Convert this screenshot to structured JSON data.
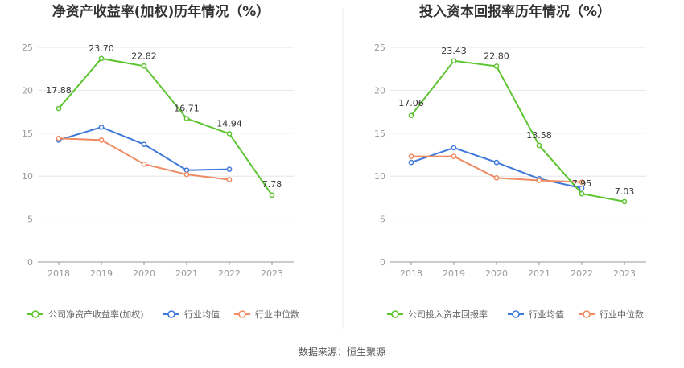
{
  "chart_data": [
    {
      "type": "line",
      "title": "净资产收益率(加权)历年情况（%）",
      "categories": [
        "2018",
        "2019",
        "2020",
        "2021",
        "2022",
        "2023"
      ],
      "ylim": [
        0,
        25
      ],
      "yticks": [
        0,
        5,
        10,
        15,
        20,
        25
      ],
      "grid": true,
      "legend_position": "bottom",
      "series": [
        {
          "name": "公司净资产收益率(加权)",
          "color": "#5cc430",
          "values": [
            17.88,
            23.7,
            22.82,
            16.71,
            14.94,
            7.78
          ],
          "labels": [
            "17.88",
            "23.70",
            "22.82",
            "16.71",
            "14.94",
            "7.78"
          ]
        },
        {
          "name": "行业均值",
          "color": "#3f79d9",
          "values": [
            14.2,
            15.7,
            13.7,
            10.7,
            10.8,
            null
          ]
        },
        {
          "name": "行业中位数",
          "color": "#ef8a62",
          "values": [
            14.4,
            14.2,
            11.4,
            10.2,
            9.6,
            null
          ]
        }
      ]
    },
    {
      "type": "line",
      "title": "投入资本回报率历年情况（%）",
      "categories": [
        "2018",
        "2019",
        "2020",
        "2021",
        "2022",
        "2023"
      ],
      "ylim": [
        0,
        25
      ],
      "yticks": [
        0,
        5,
        10,
        15,
        20,
        25
      ],
      "grid": true,
      "legend_position": "bottom",
      "series": [
        {
          "name": "公司投入资本回报率",
          "color": "#5cc430",
          "values": [
            17.06,
            23.43,
            22.8,
            13.58,
            7.95,
            7.03
          ],
          "labels": [
            "17.06",
            "23.43",
            "22.80",
            "13.58",
            "7.95",
            "7.03"
          ]
        },
        {
          "name": "行业均值",
          "color": "#3f79d9",
          "values": [
            11.6,
            13.3,
            11.6,
            9.7,
            8.6,
            null
          ]
        },
        {
          "name": "行业中位数",
          "color": "#ef8a62",
          "values": [
            12.3,
            12.3,
            9.8,
            9.5,
            9.3,
            null
          ]
        }
      ]
    }
  ],
  "footer": {
    "source": "数据来源：恒生聚源"
  }
}
